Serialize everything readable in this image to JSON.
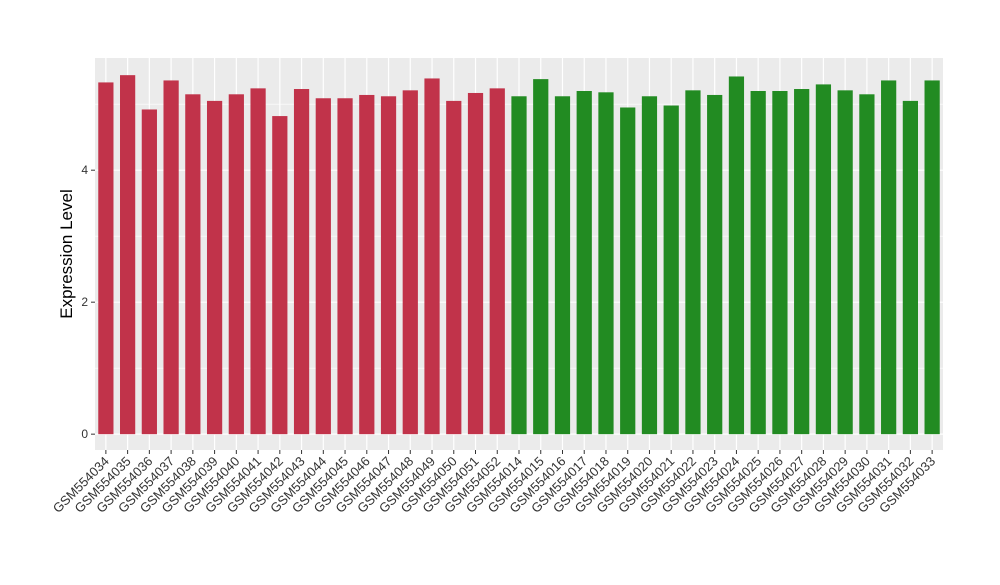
{
  "chart_data": {
    "type": "bar",
    "y_label": "Expression Level",
    "categories": [
      "GSM554034",
      "GSM554035",
      "GSM554036",
      "GSM554037",
      "GSM554038",
      "GSM554039",
      "GSM554040",
      "GSM554041",
      "GSM554042",
      "GSM554043",
      "GSM554044",
      "GSM554045",
      "GSM554046",
      "GSM554047",
      "GSM554048",
      "GSM554049",
      "GSM554050",
      "GSM554051",
      "GSM554052",
      "GSM554014",
      "GSM554015",
      "GSM554016",
      "GSM554017",
      "GSM554018",
      "GSM554019",
      "GSM554020",
      "GSM554021",
      "GSM554022",
      "GSM554023",
      "GSM554024",
      "GSM554025",
      "GSM554026",
      "GSM554027",
      "GSM554028",
      "GSM554029",
      "GSM554030",
      "GSM554031",
      "GSM554032",
      "GSM554033"
    ],
    "values": [
      5.33,
      5.44,
      4.92,
      5.36,
      5.15,
      5.05,
      5.15,
      5.24,
      4.82,
      5.23,
      5.09,
      5.09,
      5.14,
      5.12,
      5.21,
      5.39,
      5.05,
      5.17,
      5.24,
      5.12,
      5.38,
      5.12,
      5.2,
      5.18,
      4.95,
      5.12,
      4.98,
      5.21,
      5.14,
      5.42,
      5.2,
      5.2,
      5.23,
      5.3,
      5.21,
      5.15,
      5.36,
      5.05,
      5.36
    ],
    "colors": [
      "#c1334a",
      "#c1334a",
      "#c1334a",
      "#c1334a",
      "#c1334a",
      "#c1334a",
      "#c1334a",
      "#c1334a",
      "#c1334a",
      "#c1334a",
      "#c1334a",
      "#c1334a",
      "#c1334a",
      "#c1334a",
      "#c1334a",
      "#c1334a",
      "#c1334a",
      "#c1334a",
      "#c1334a",
      "#228b22",
      "#228b22",
      "#228b22",
      "#228b22",
      "#228b22",
      "#228b22",
      "#228b22",
      "#228b22",
      "#228b22",
      "#228b22",
      "#228b22",
      "#228b22",
      "#228b22",
      "#228b22",
      "#228b22",
      "#228b22",
      "#228b22",
      "#228b22",
      "#228b22",
      "#228b22"
    ],
    "ylim": [
      -0.24,
      5.7
    ],
    "yticks": [
      0,
      2,
      4
    ],
    "minor_yticks": [
      1,
      3,
      5
    ],
    "grid": true,
    "background": "#ebebeb"
  }
}
